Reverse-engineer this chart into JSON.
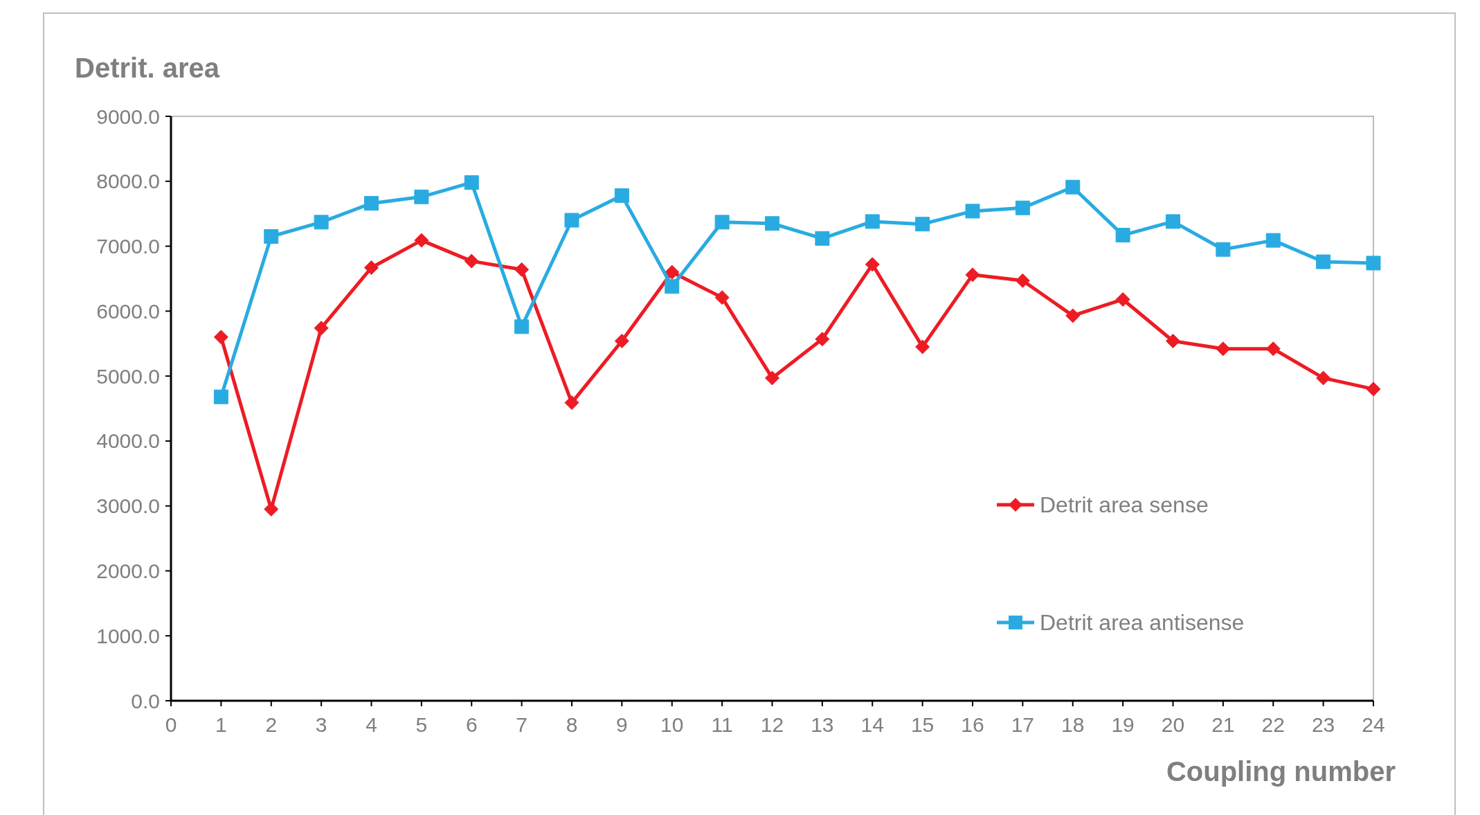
{
  "chart_data": {
    "type": "line",
    "xlabel": "Coupling number",
    "ylabel": "Detrit. area",
    "x": [
      1,
      2,
      3,
      4,
      5,
      6,
      7,
      8,
      9,
      10,
      11,
      12,
      13,
      14,
      15,
      16,
      17,
      18,
      19,
      20,
      21,
      22,
      23,
      24
    ],
    "xlim": [
      0,
      24
    ],
    "xticks": [
      0,
      1,
      2,
      3,
      4,
      5,
      6,
      7,
      8,
      9,
      10,
      11,
      12,
      13,
      14,
      15,
      16,
      17,
      18,
      19,
      20,
      21,
      22,
      23,
      24
    ],
    "ylim": [
      0,
      9000
    ],
    "yticks": [
      {
        "value": 0,
        "label": "0.0"
      },
      {
        "value": 1000,
        "label": "1000.0"
      },
      {
        "value": 2000,
        "label": "2000.0"
      },
      {
        "value": 3000,
        "label": "3000.0"
      },
      {
        "value": 4000,
        "label": "4000.0"
      },
      {
        "value": 5000,
        "label": "5000.0"
      },
      {
        "value": 6000,
        "label": "6000.0"
      },
      {
        "value": 7000,
        "label": "7000.0"
      },
      {
        "value": 8000,
        "label": "8000.0"
      },
      {
        "value": 9000,
        "label": "9000.0"
      }
    ],
    "grid": false,
    "legend": "right",
    "line_style": "solid",
    "series": [
      {
        "name": "Detrit area sense",
        "color": "#ed1c24",
        "marker": "diamond",
        "values": [
          5600,
          2950,
          5740,
          6670,
          7090,
          6770,
          6640,
          4590,
          5540,
          6600,
          6210,
          4970,
          5570,
          6720,
          5450,
          6560,
          6470,
          5930,
          6180,
          5540,
          5420,
          5420,
          4970,
          4800
        ]
      },
      {
        "name": "Detrit area antisense",
        "color": "#29abe2",
        "marker": "square",
        "values": [
          4680,
          7150,
          7370,
          7660,
          7760,
          7980,
          5760,
          7400,
          7780,
          6380,
          7370,
          7350,
          7120,
          7380,
          7340,
          7540,
          7590,
          7910,
          7170,
          7380,
          6950,
          7090,
          6760,
          6740
        ]
      }
    ]
  }
}
